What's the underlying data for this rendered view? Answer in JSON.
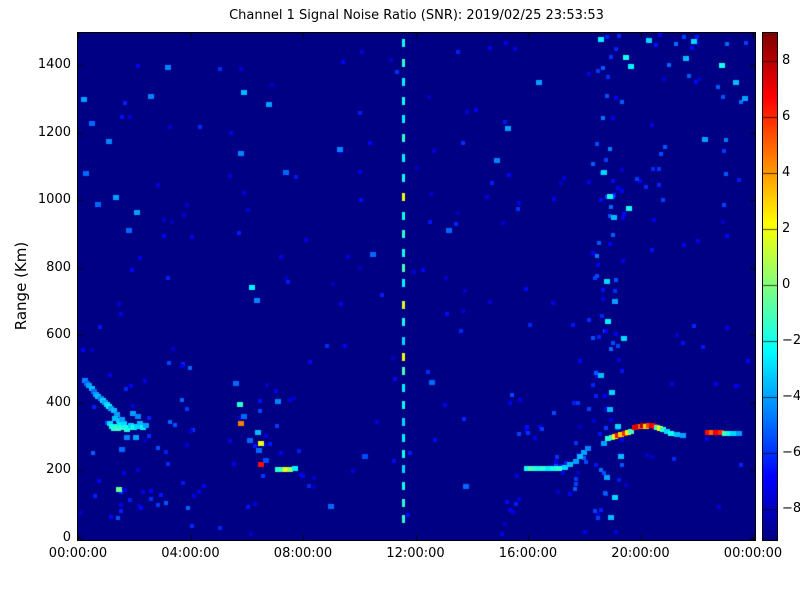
{
  "chart_data": {
    "type": "heatmap",
    "title": "Channel 1 Signal Noise Ratio (SNR): 2019/02/25 23:53:53",
    "xlabel": "",
    "ylabel": "Range (Km)",
    "grid": false,
    "x_axis": {
      "tick_labels": [
        "00:00:00",
        "04:00:00",
        "08:00:00",
        "12:00:00",
        "16:00:00",
        "20:00:00",
        "00:00:00"
      ],
      "tick_hours": [
        0,
        4,
        8,
        12,
        16,
        20,
        24
      ],
      "range_hours": [
        0,
        24.07
      ]
    },
    "y_axis": {
      "ticks_km": [
        0,
        200,
        400,
        600,
        800,
        1000,
        1200,
        1400
      ],
      "range_km": [
        0,
        1496
      ]
    },
    "colorbar": {
      "colormap": "jet",
      "ticks": [
        8,
        6,
        4,
        2,
        0,
        -2,
        -4,
        -6,
        -8
      ],
      "vmin": -9.1,
      "vmax": 9.0
    },
    "background_value": -9.0,
    "features": [
      {
        "name": "morning-descent-trace",
        "points": [
          [
            0.25,
            468,
            -4.5
          ],
          [
            0.32,
            460,
            -5
          ],
          [
            0.4,
            452,
            -4
          ],
          [
            0.5,
            444,
            -3.5
          ],
          [
            0.58,
            436,
            -5
          ],
          [
            0.65,
            428,
            -4
          ],
          [
            0.72,
            422,
            -3.5
          ],
          [
            0.8,
            415,
            -4.5
          ],
          [
            0.88,
            410,
            -3
          ],
          [
            0.95,
            404,
            -4
          ],
          [
            1.02,
            398,
            -3
          ],
          [
            1.1,
            392,
            -2.5
          ],
          [
            1.18,
            386,
            -4
          ],
          [
            1.28,
            378,
            -3.5
          ],
          [
            1.38,
            368,
            -4
          ]
        ]
      },
      {
        "name": "morning-cluster",
        "points": [
          [
            1.12,
            340,
            -3
          ],
          [
            1.2,
            332,
            -2
          ],
          [
            1.28,
            326,
            -1.5
          ],
          [
            1.35,
            333,
            -2
          ],
          [
            1.42,
            326,
            -1
          ],
          [
            1.5,
            334,
            -2.5
          ],
          [
            1.55,
            328,
            -1.5
          ],
          [
            1.62,
            340,
            -3
          ],
          [
            1.68,
            330,
            -2
          ],
          [
            1.75,
            322,
            -1.5
          ],
          [
            1.82,
            330,
            -2
          ],
          [
            1.45,
            350,
            -3
          ],
          [
            1.58,
            352,
            -4
          ],
          [
            1.3,
            355,
            -3.5
          ],
          [
            1.9,
            336,
            -3
          ],
          [
            2.0,
            328,
            -2
          ],
          [
            2.1,
            333,
            -3
          ],
          [
            2.2,
            340,
            -3.5
          ],
          [
            2.3,
            330,
            -2.5
          ],
          [
            2.4,
            335,
            -4
          ],
          [
            1.95,
            370,
            -4
          ],
          [
            2.15,
            360,
            -4.5
          ],
          [
            2.05,
            300,
            -4
          ],
          [
            1.75,
            298,
            -4.5
          ],
          [
            1.55,
            265,
            -5
          ],
          [
            1.45,
            145,
            -0.5
          ]
        ]
      },
      {
        "name": "dawn-descent-trace",
        "points": [
          [
            5.6,
            460,
            -5
          ],
          [
            5.75,
            398,
            -1.5
          ],
          [
            5.8,
            340,
            4.5
          ],
          [
            5.9,
            360,
            -5
          ],
          [
            6.1,
            290,
            -5
          ],
          [
            6.4,
            314,
            -3.5
          ],
          [
            6.5,
            281,
            2
          ],
          [
            6.45,
            260,
            -5
          ],
          [
            6.5,
            219,
            6.5
          ],
          [
            6.7,
            230,
            -5.5
          ],
          [
            7.1,
            205,
            -1.5
          ],
          [
            7.25,
            205,
            -1
          ],
          [
            7.4,
            205,
            2
          ],
          [
            7.55,
            205,
            0.5
          ],
          [
            7.7,
            207,
            -2.5
          ],
          [
            7.1,
            405,
            -4.5
          ]
        ]
      },
      {
        "name": "evening-e-layer-trace",
        "points": [
          [
            15.95,
            207,
            -2
          ],
          [
            16.1,
            207,
            -1
          ],
          [
            16.25,
            207,
            -1.5
          ],
          [
            16.4,
            208,
            -2
          ],
          [
            16.55,
            207,
            -1.5
          ],
          [
            16.7,
            208,
            -2.5
          ],
          [
            16.9,
            207,
            -2
          ],
          [
            17.1,
            208,
            -1.5
          ],
          [
            17.3,
            210,
            -3
          ],
          [
            17.5,
            218,
            -3.5
          ],
          [
            17.7,
            228,
            -4
          ],
          [
            17.85,
            242,
            -3.5
          ],
          [
            18.0,
            255,
            -4
          ],
          [
            18.15,
            268,
            -4.5
          ],
          [
            18.85,
            295,
            -1.5
          ],
          [
            19.0,
            300,
            -1
          ],
          [
            19.1,
            302,
            2.5
          ],
          [
            19.2,
            305,
            6.5
          ],
          [
            19.3,
            308,
            3
          ],
          [
            19.45,
            312,
            6
          ],
          [
            19.55,
            315,
            2
          ],
          [
            19.65,
            318,
            -1
          ],
          [
            19.8,
            330,
            7
          ],
          [
            19.9,
            332,
            7.5
          ],
          [
            20.0,
            333,
            5
          ],
          [
            20.1,
            334,
            8
          ],
          [
            20.2,
            333,
            3
          ],
          [
            20.3,
            334,
            5.5
          ],
          [
            20.4,
            335,
            7
          ],
          [
            20.5,
            333,
            6.5
          ],
          [
            20.6,
            330,
            -1
          ],
          [
            20.7,
            327,
            2
          ],
          [
            20.8,
            323,
            -1.5
          ],
          [
            20.95,
            318,
            -3
          ],
          [
            21.1,
            312,
            -2
          ],
          [
            21.3,
            308,
            -3.5
          ],
          [
            21.5,
            305,
            -4
          ],
          [
            22.4,
            315,
            6.5
          ],
          [
            22.55,
            314,
            5
          ],
          [
            22.7,
            315,
            7
          ],
          [
            22.85,
            314,
            6
          ],
          [
            23.0,
            312,
            -1
          ],
          [
            23.15,
            311,
            -2
          ],
          [
            23.3,
            310,
            -3
          ],
          [
            23.5,
            312,
            -4
          ]
        ]
      },
      {
        "name": "scattered-echoes",
        "points": [
          [
            0.2,
            1300,
            -4
          ],
          [
            0.5,
            1230,
            -5
          ],
          [
            1.1,
            1175,
            -4.5
          ],
          [
            0.3,
            1080,
            -5
          ],
          [
            1.35,
            1010,
            -4
          ],
          [
            0.7,
            990,
            -5
          ],
          [
            2.6,
            1310,
            -4.5
          ],
          [
            5.9,
            1320,
            -3.5
          ],
          [
            6.8,
            1285,
            -4
          ],
          [
            5.8,
            1140,
            -4.5
          ],
          [
            7.4,
            1085,
            -5
          ],
          [
            6.2,
            745,
            -2.5
          ],
          [
            6.35,
            705,
            -4.5
          ],
          [
            15.3,
            1215,
            -4
          ],
          [
            14.9,
            1120,
            -4.5
          ],
          [
            16.4,
            1350,
            -4
          ],
          [
            18.6,
            1478,
            -2.5
          ],
          [
            19.5,
            1425,
            -2
          ],
          [
            19.65,
            1398,
            -2.5
          ],
          [
            18.9,
            1012,
            -2
          ],
          [
            18.7,
            1085,
            -3
          ],
          [
            19.6,
            978,
            -2
          ],
          [
            19.05,
            952,
            -3.5
          ],
          [
            18.8,
            762,
            -3
          ],
          [
            19.1,
            702,
            -4
          ],
          [
            18.85,
            642,
            -2.5
          ],
          [
            19.4,
            592,
            -3
          ],
          [
            18.6,
            482,
            -3.5
          ],
          [
            19.0,
            432,
            -3
          ],
          [
            18.9,
            382,
            -3.5
          ],
          [
            19.2,
            332,
            -3
          ],
          [
            18.7,
            282,
            -4
          ],
          [
            19.3,
            242,
            -3.5
          ],
          [
            18.8,
            182,
            -4
          ],
          [
            19.1,
            122,
            -3
          ],
          [
            18.95,
            62,
            -3.5
          ],
          [
            22.9,
            1402,
            -2
          ],
          [
            21.9,
            1472,
            -3
          ],
          [
            23.4,
            1352,
            -3.5
          ],
          [
            23.7,
            1302,
            -4
          ],
          [
            22.3,
            1182,
            -4
          ],
          [
            21.6,
            1422,
            -3.5
          ],
          [
            20.3,
            1475,
            -3
          ],
          [
            9.3,
            1152,
            -4.5
          ],
          [
            10.5,
            842,
            -5
          ],
          [
            13.2,
            912,
            -5
          ],
          [
            12.6,
            462,
            -5
          ],
          [
            3.2,
            1395,
            -4.5
          ],
          [
            2.1,
            965,
            -4
          ],
          [
            1.8,
            912,
            -5
          ],
          [
            13.8,
            155,
            -5
          ],
          [
            10.2,
            242,
            -5.5
          ],
          [
            9.0,
            95,
            -5
          ]
        ]
      }
    ],
    "interference_line": {
      "name": "noon-interference-line",
      "t": 11.54,
      "dots": [
        [
          1465,
          -2
        ],
        [
          1408,
          -1.5
        ],
        [
          1352,
          -2.5
        ],
        [
          1296,
          -2
        ],
        [
          1240,
          -2.5
        ],
        [
          1184,
          -1.5
        ],
        [
          1125,
          -2.5
        ],
        [
          1066,
          -2
        ],
        [
          1010,
          2
        ],
        [
          955,
          -2
        ],
        [
          900,
          -1.5
        ],
        [
          845,
          -2
        ],
        [
          800,
          -1
        ],
        [
          755,
          -2.5
        ],
        [
          690,
          1.5
        ],
        [
          640,
          -2
        ],
        [
          585,
          -3
        ],
        [
          535,
          2
        ],
        [
          495,
          -1
        ],
        [
          445,
          -2.5
        ],
        [
          395,
          -2
        ],
        [
          345,
          -3
        ],
        [
          295,
          -2.5
        ],
        [
          250,
          -2
        ],
        [
          205,
          -3
        ],
        [
          155,
          -2
        ],
        [
          105,
          -1.5
        ],
        [
          56,
          -1.5
        ]
      ]
    },
    "noise": {
      "seed": 11,
      "clusters": [
        {
          "t": [
            0,
            24
          ],
          "r": [
            10,
            1490
          ],
          "v": [
            -8,
            -6
          ],
          "count": 170
        },
        {
          "t": [
            18.3,
            19.4
          ],
          "r": [
            10,
            1490
          ],
          "v": [
            -7.5,
            -4.5
          ],
          "count": 75
        },
        {
          "t": [
            0.5,
            4.5
          ],
          "r": [
            60,
            520
          ],
          "v": [
            -7.5,
            -5
          ],
          "count": 40
        },
        {
          "t": [
            15.3,
            18.2
          ],
          "r": [
            60,
            430
          ],
          "v": [
            -7.5,
            -5.2
          ],
          "count": 28
        },
        {
          "t": [
            19.5,
            23.5
          ],
          "r": [
            900,
            1200
          ],
          "v": [
            -7,
            -4.5
          ],
          "count": 14
        },
        {
          "t": [
            5.2,
            8.2
          ],
          "r": [
            180,
            460
          ],
          "v": [
            -7.5,
            -5.5
          ],
          "count": 16
        },
        {
          "t": [
            20.5,
            23.9
          ],
          "r": [
            1250,
            1495
          ],
          "v": [
            -7,
            -4.8
          ],
          "count": 14
        }
      ]
    }
  }
}
